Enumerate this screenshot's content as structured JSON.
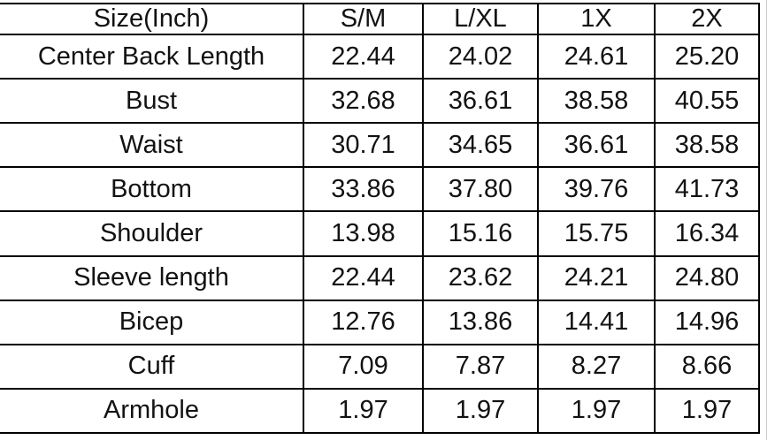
{
  "chart_data": {
    "type": "table",
    "title": "Size(Inch)",
    "columns": [
      "Size(Inch)",
      "S/M",
      "L/XL",
      "1X",
      "2X"
    ],
    "rows": [
      {
        "label": "Center Back Length",
        "values": [
          "22.44",
          "24.02",
          "24.61",
          "25.20"
        ]
      },
      {
        "label": "Bust",
        "values": [
          "32.68",
          "36.61",
          "38.58",
          "40.55"
        ]
      },
      {
        "label": "Waist",
        "values": [
          "30.71",
          "34.65",
          "36.61",
          "38.58"
        ]
      },
      {
        "label": "Bottom",
        "values": [
          "33.86",
          "37.80",
          "39.76",
          "41.73"
        ]
      },
      {
        "label": "Shoulder",
        "values": [
          "13.98",
          "15.16",
          "15.75",
          "16.34"
        ]
      },
      {
        "label": "Sleeve length",
        "values": [
          "22.44",
          "23.62",
          "24.21",
          "24.80"
        ]
      },
      {
        "label": "Bicep",
        "values": [
          "12.76",
          "13.86",
          "14.41",
          "14.96"
        ]
      },
      {
        "label": "Cuff",
        "values": [
          "7.09",
          "7.87",
          "8.27",
          "8.66"
        ]
      },
      {
        "label": "Armhole",
        "values": [
          "1.97",
          "1.97",
          "1.97",
          "1.97"
        ]
      }
    ],
    "layout": {
      "grid": "on",
      "header_row": true,
      "units": "inches"
    },
    "colors": {
      "border": "#000000",
      "background": "#ffffff",
      "text": "#121212",
      "faint_gridline": "#c9c9c9"
    }
  }
}
